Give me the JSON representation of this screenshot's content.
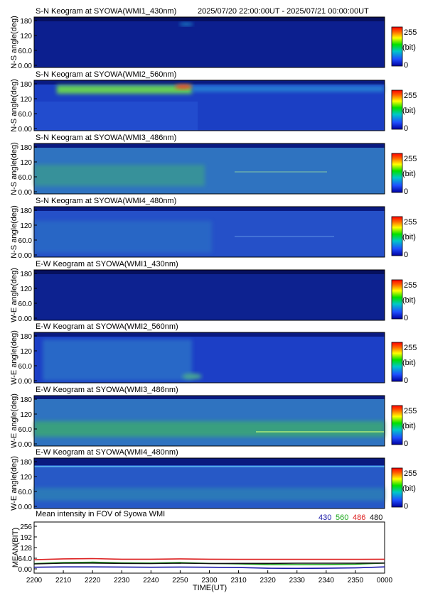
{
  "header": {
    "time_range": "2025/07/20 22:00:00UT - 2025/07/21 00:00:00UT"
  },
  "colorbar": {
    "max_label": "255",
    "unit_label": "(bit)",
    "min_label": "0"
  },
  "keograms": [
    {
      "title": "S-N Keogram at SYOWA(WMI1_430nm)",
      "ylabel": "N-S angle(deg)",
      "ticks": [
        "180",
        "120",
        "60.0",
        "0.00"
      ]
    },
    {
      "title": "S-N Keogram at SYOWA(WMI2_560nm)",
      "ylabel": "N-S angle(deg)",
      "ticks": [
        "180",
        "120",
        "60.0",
        "0.00"
      ]
    },
    {
      "title": "S-N Keogram at SYOWA(WMI3_486nm)",
      "ylabel": "N-S angle(deg)",
      "ticks": [
        "180",
        "120",
        "60.0",
        "0.00"
      ]
    },
    {
      "title": "S-N Keogram at SYOWA(WMI4_480nm)",
      "ylabel": "N-S angle(deg)",
      "ticks": [
        "180",
        "120",
        "60.0",
        "0.00"
      ]
    },
    {
      "title": "E-W Keogram at SYOWA(WMI1_430nm)",
      "ylabel": "W-E angle(deg)",
      "ticks": [
        "180",
        "120",
        "60.0",
        "0.00"
      ]
    },
    {
      "title": "E-W Keogram at SYOWA(WMI2_560nm)",
      "ylabel": "W-E angle(deg)",
      "ticks": [
        "180",
        "120",
        "60.0",
        "0.00"
      ]
    },
    {
      "title": "E-W Keogram at SYOWA(WMI3_486nm)",
      "ylabel": "W-E angle(deg)",
      "ticks": [
        "180",
        "120",
        "60.0",
        "0.00"
      ]
    },
    {
      "title": "E-W Keogram at SYOWA(WMI4_480nm)",
      "ylabel": "W-E angle(deg)",
      "ticks": [
        "180",
        "120",
        "60.0",
        "0.00"
      ]
    }
  ],
  "chart_data": {
    "type": "line",
    "title": "Mean intensity in FOV of Syowa WMI",
    "xlabel": "TIME(UT)",
    "ylabel": "MEAN(BIT)",
    "x_tick_labels": [
      "2200",
      "2210",
      "2220",
      "2230",
      "2240",
      "2250",
      "2300",
      "2310",
      "2320",
      "2330",
      "2340",
      "2350",
      "0000"
    ],
    "y_tick_labels": [
      "256",
      "192",
      "128",
      "64.0",
      "0.00"
    ],
    "ylim": [
      0,
      256
    ],
    "x_minutes": [
      0,
      10,
      20,
      30,
      40,
      50,
      60,
      70,
      80,
      90,
      100,
      110,
      120
    ],
    "series": [
      {
        "name": "430",
        "color": "#1a1aa8",
        "values": [
          10,
          12,
          12,
          11,
          10,
          11,
          10,
          8,
          4,
          3,
          4,
          6,
          12
        ]
      },
      {
        "name": "560",
        "color": "#22aa22",
        "values": [
          32,
          38,
          40,
          36,
          35,
          38,
          33,
          30,
          26,
          25,
          26,
          28,
          35
        ]
      },
      {
        "name": "486",
        "color": "#dd2222",
        "values": [
          55,
          60,
          62,
          58,
          58,
          60,
          58,
          57,
          57,
          57,
          57,
          57,
          58
        ]
      },
      {
        "name": "480",
        "color": "#111111",
        "values": [
          30,
          34,
          35,
          33,
          32,
          34,
          32,
          33,
          33,
          34,
          34,
          34,
          35
        ]
      }
    ]
  }
}
